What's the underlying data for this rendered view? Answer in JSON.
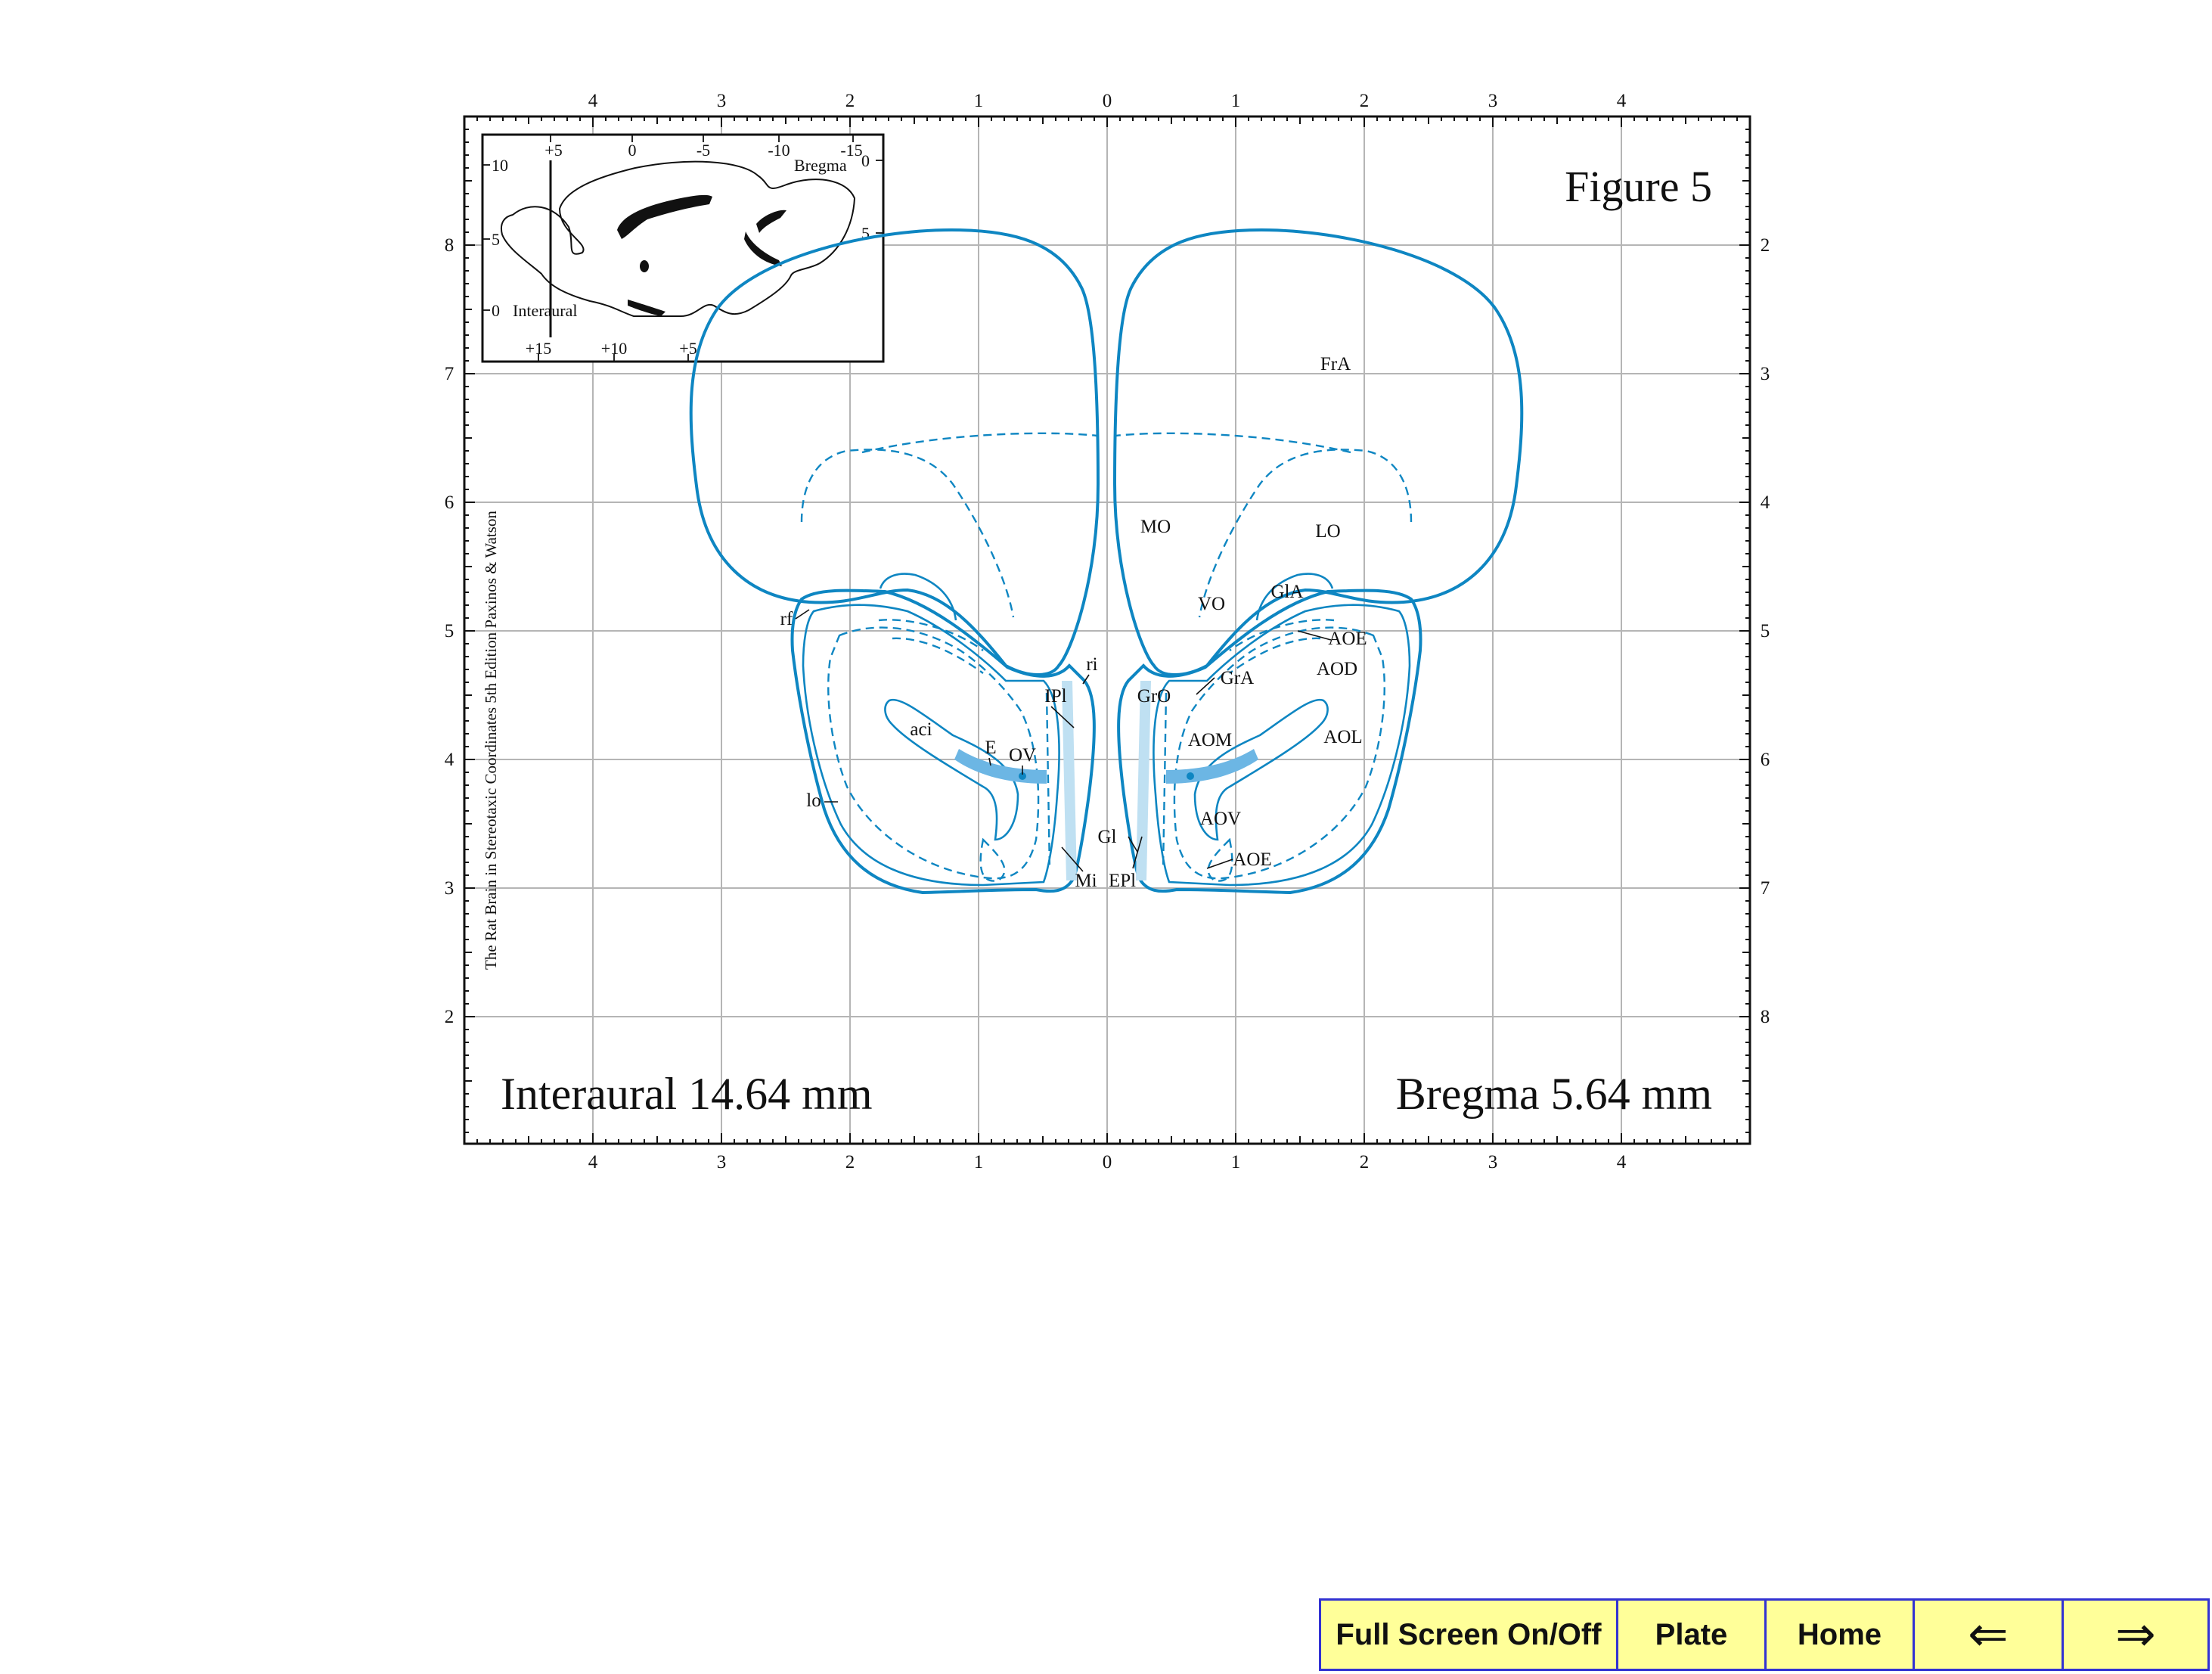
{
  "figure": {
    "title": "Figure 5",
    "interaural": "Interaural 14.64 mm",
    "bregma": "Bregma 5.64 mm",
    "side_caption": "The Rat Brain in Stereotaxic Coordinates  5th Edition  Paxinos & Watson"
  },
  "axes": {
    "top_ticks": [
      "4",
      "3",
      "2",
      "1",
      "0",
      "1",
      "2",
      "3",
      "4"
    ],
    "bottom_ticks": [
      "4",
      "3",
      "2",
      "1",
      "0",
      "1",
      "2",
      "3",
      "4"
    ],
    "left_ticks": [
      "8",
      "7",
      "6",
      "5",
      "4",
      "3",
      "2"
    ],
    "right_ticks": [
      "2",
      "3",
      "4",
      "5",
      "6",
      "7",
      "8"
    ]
  },
  "inset": {
    "top_ticks": [
      "+5",
      "0",
      "-5",
      "-10",
      "-15"
    ],
    "bottom_ticks": [
      "+15",
      "+10",
      "+5"
    ],
    "left_ticks": [
      "10",
      "5",
      "0"
    ],
    "right_ticks": [
      "0",
      "5"
    ],
    "bregma_label": "Bregma",
    "interaural_label": "Interaural"
  },
  "regions": {
    "FrA": "FrA",
    "MO": "MO",
    "LO": "LO",
    "VO": "VO",
    "GlA": "GlA",
    "AOE_top": "AOE",
    "AOD": "AOD",
    "GrA": "GrA",
    "GrO": "GrO",
    "AOM": "AOM",
    "AOL": "AOL",
    "AOV": "AOV",
    "Gl": "Gl",
    "AOE_bottom": "AOE",
    "EPl": "EPl",
    "Mi": "Mi",
    "ri": "ri",
    "IPl": "IPl",
    "aci": "aci",
    "E": "E",
    "OV": "OV",
    "lo": "lo",
    "rf": "rf"
  },
  "nav": {
    "fullscreen": "Full Screen On/Off",
    "plate": "Plate",
    "home": "Home",
    "prev": "⇐",
    "next": "⇒"
  },
  "colors": {
    "outline": "#0e86c2",
    "ventricle": "#6cb6e4",
    "nav_background": "#ffff99",
    "nav_border": "#3232d2"
  }
}
